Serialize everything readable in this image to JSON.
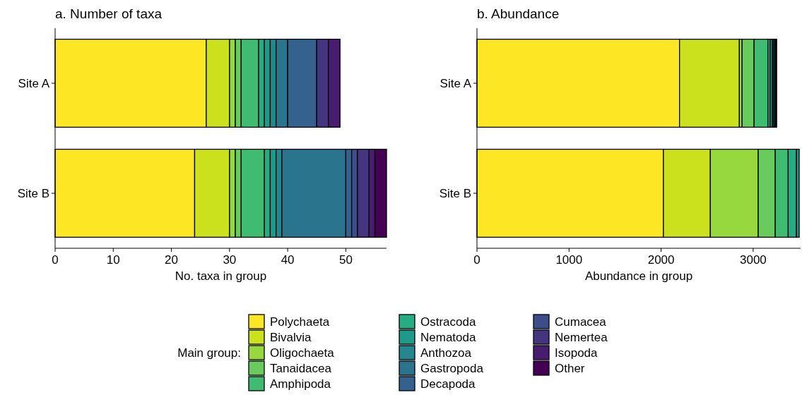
{
  "chart_data": [
    {
      "type": "bar",
      "orientation": "horizontal",
      "stacked": true,
      "title": "a. Number of taxa",
      "xlabel": "No. taxa in group",
      "categories": [
        "Site A",
        "Site B"
      ],
      "xlim": [
        0,
        57
      ],
      "xticks": [
        0,
        10,
        20,
        30,
        40,
        50
      ],
      "grid": false,
      "legend": "bottom",
      "legend_title": "Main group:",
      "series": [
        {
          "name": "Polychaeta",
          "color": "#fde725",
          "values": [
            26,
            24
          ]
        },
        {
          "name": "Bivalvia",
          "color": "#cbe11e",
          "values": [
            4,
            6
          ]
        },
        {
          "name": "Oligochaeta",
          "color": "#97d83f",
          "values": [
            1,
            1
          ]
        },
        {
          "name": "Tanaidacea",
          "color": "#67cc5c",
          "values": [
            1,
            1
          ]
        },
        {
          "name": "Amphipoda",
          "color": "#40bc72",
          "values": [
            3,
            4
          ]
        },
        {
          "name": "Ostracoda",
          "color": "#25ac82",
          "values": [
            1,
            1
          ]
        },
        {
          "name": "Nematoda",
          "color": "#1f998a",
          "values": [
            1,
            1
          ]
        },
        {
          "name": "Anthozoa",
          "color": "#24878e",
          "values": [
            1,
            1
          ]
        },
        {
          "name": "Gastropoda",
          "color": "#2b748e",
          "values": [
            2,
            11
          ]
        },
        {
          "name": "Decapoda",
          "color": "#34618d",
          "values": [
            5,
            1
          ]
        },
        {
          "name": "Cumacea",
          "color": "#3d4d8a",
          "values": [
            0,
            1
          ]
        },
        {
          "name": "Nemertea",
          "color": "#453581",
          "values": [
            2,
            2
          ]
        },
        {
          "name": "Isopoda",
          "color": "#481c6e",
          "values": [
            2,
            1
          ]
        },
        {
          "name": "Other",
          "color": "#440154",
          "values": [
            0,
            2
          ]
        }
      ]
    },
    {
      "type": "bar",
      "orientation": "horizontal",
      "stacked": true,
      "title": "b. Abundance",
      "xlabel": "Abundance in group",
      "categories": [
        "Site A",
        "Site B"
      ],
      "xlim": [
        0,
        3515
      ],
      "xticks": [
        0,
        1000,
        2000,
        3000
      ],
      "grid": false,
      "series": [
        {
          "color": "#fde725",
          "values": [
            2200,
            2025
          ]
        },
        {
          "color": "#cbe11e",
          "values": [
            650,
            510
          ]
        },
        {
          "color": "#97d83f",
          "values": [
            30,
            520
          ]
        },
        {
          "color": "#67cc5c",
          "values": [
            130,
            185
          ]
        },
        {
          "color": "#40bc72",
          "values": [
            150,
            140
          ]
        },
        {
          "color": "#25ac82",
          "values": [
            25,
            90
          ]
        },
        {
          "color": "#1f998a",
          "values": [
            25,
            30
          ]
        },
        {
          "color": "#24878e",
          "values": [
            15,
            null
          ]
        },
        {
          "color": "#2b748e",
          "values": [
            15,
            null
          ]
        },
        {
          "color": "#34618d",
          "values": [
            5,
            0
          ]
        },
        {
          "color": "#3d4d8a",
          "values": [
            0,
            0
          ]
        },
        {
          "color": "#453581",
          "values": [
            5,
            0
          ]
        },
        {
          "color": "#481c6e",
          "values": [
            5,
            0
          ]
        },
        {
          "color": "#440154",
          "values": [
            0,
            0
          ]
        }
      ]
    }
  ]
}
